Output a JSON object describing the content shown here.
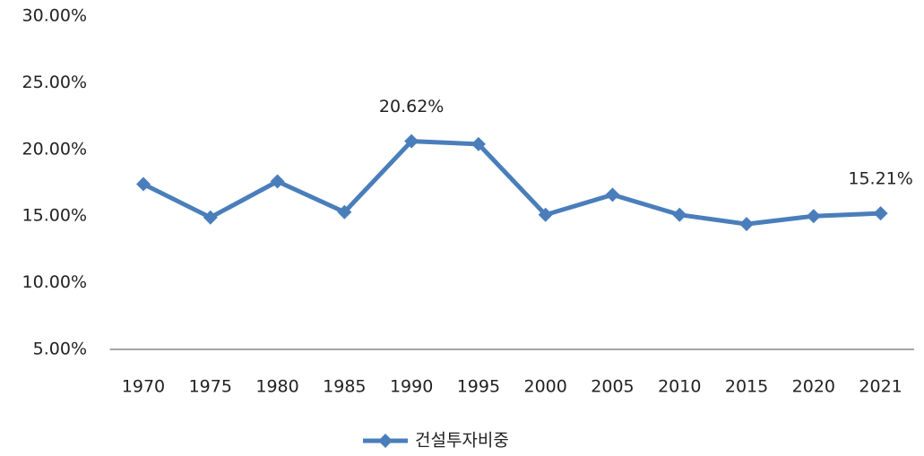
{
  "chart_data": {
    "type": "line",
    "categories": [
      "1970",
      "1975",
      "1980",
      "1985",
      "1990",
      "1995",
      "2000",
      "2005",
      "2010",
      "2015",
      "2020",
      "2021"
    ],
    "series": [
      {
        "name": "건설투자비중",
        "color": "#4a7ebb",
        "values": [
          17.4,
          14.9,
          17.6,
          15.3,
          20.62,
          20.4,
          15.1,
          16.6,
          15.1,
          14.4,
          15.0,
          15.21
        ],
        "value_labels": [
          null,
          null,
          null,
          null,
          "20.62%",
          null,
          null,
          null,
          null,
          null,
          null,
          "15.21%"
        ]
      }
    ],
    "ylim": [
      5,
      30
    ],
    "yticks": [
      {
        "value": 5,
        "label": "5.00%"
      },
      {
        "value": 10,
        "label": "10.00%"
      },
      {
        "value": 15,
        "label": "15.00%"
      },
      {
        "value": 20,
        "label": "20.00%"
      },
      {
        "value": 25,
        "label": "25.00%"
      },
      {
        "value": 30,
        "label": "30.00%"
      }
    ],
    "grid": false,
    "legend": "bottom"
  }
}
